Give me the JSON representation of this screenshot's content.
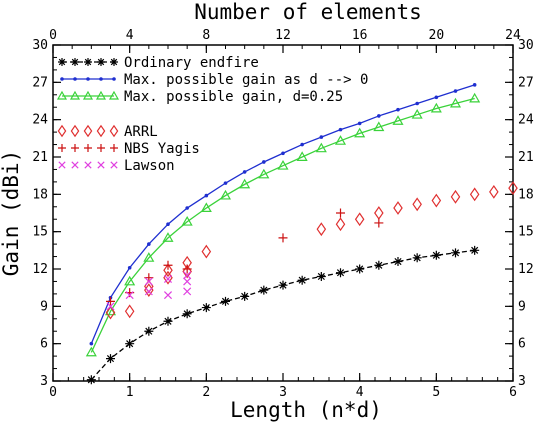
{
  "chart_data": {
    "type": "scatter",
    "xlabel": "Length (n*d)",
    "ylabel": "Gain (dBi)",
    "x2label": "Number of elements",
    "xlim": [
      0,
      6
    ],
    "ylim": [
      3,
      30
    ],
    "x2lim": [
      0,
      24
    ],
    "x_ticks": [
      "0",
      "1",
      "2",
      "3",
      "4",
      "5",
      "6"
    ],
    "y_ticks": [
      "3",
      "6",
      "9",
      "12",
      "15",
      "18",
      "21",
      "24",
      "27",
      "30"
    ],
    "x2_ticks": [
      "0",
      "4",
      "8",
      "12",
      "16",
      "20",
      "24"
    ],
    "legend_position": "top-left",
    "series": [
      {
        "name": "Ordinary endfire",
        "style": "line-markers",
        "marker": "star",
        "color": "#000000",
        "x": [
          0.5,
          0.75,
          1.0,
          1.25,
          1.5,
          1.75,
          2.0,
          2.25,
          2.5,
          2.75,
          3.0,
          3.25,
          3.5,
          3.75,
          4.0,
          4.25,
          4.5,
          4.75,
          5.0,
          5.25,
          5.5
        ],
        "y": [
          3.1,
          4.8,
          6.0,
          7.0,
          7.8,
          8.4,
          8.9,
          9.4,
          9.8,
          10.3,
          10.7,
          11.1,
          11.4,
          11.7,
          12.0,
          12.3,
          12.6,
          12.9,
          13.1,
          13.3,
          13.5
        ]
      },
      {
        "name": "Max. possible gain as d --> 0",
        "style": "line-markers",
        "marker": "dot",
        "color": "#1f2fd0",
        "x": [
          0.5,
          0.75,
          1.0,
          1.25,
          1.5,
          1.75,
          2.0,
          2.25,
          2.5,
          2.75,
          3.0,
          3.25,
          3.5,
          3.75,
          4.0,
          4.25,
          4.5,
          4.75,
          5.0,
          5.25,
          5.5
        ],
        "y": [
          6.0,
          9.7,
          12.1,
          14.0,
          15.6,
          16.9,
          17.9,
          18.9,
          19.8,
          20.6,
          21.3,
          22.0,
          22.6,
          23.2,
          23.7,
          24.3,
          24.8,
          25.3,
          25.8,
          26.3,
          26.8
        ]
      },
      {
        "name": "Max. possible gain, d=0.25",
        "style": "line-markers",
        "marker": "triangle",
        "color": "#3ad23a",
        "x": [
          0.5,
          0.75,
          1.0,
          1.25,
          1.5,
          1.75,
          2.0,
          2.25,
          2.5,
          2.75,
          3.0,
          3.25,
          3.5,
          3.75,
          4.0,
          4.25,
          4.5,
          4.75,
          5.0,
          5.25,
          5.5
        ],
        "y": [
          5.3,
          8.6,
          11.0,
          12.9,
          14.5,
          15.8,
          16.9,
          17.9,
          18.8,
          19.6,
          20.3,
          21.0,
          21.7,
          22.3,
          22.9,
          23.4,
          23.9,
          24.4,
          24.9,
          25.3,
          25.7
        ]
      },
      {
        "name": "ARRL",
        "style": "markers",
        "marker": "diamond",
        "color": "#e03030",
        "x": [
          0.75,
          1.0,
          1.25,
          1.25,
          1.5,
          1.5,
          1.75,
          1.75,
          2.0,
          3.5,
          3.75,
          4.0,
          4.25,
          4.5,
          4.75,
          5.0,
          5.25,
          5.5,
          5.75,
          6.0
        ],
        "y": [
          8.5,
          8.6,
          10.3,
          10.6,
          11.3,
          11.9,
          11.8,
          12.5,
          13.4,
          15.2,
          15.6,
          16.0,
          16.5,
          16.9,
          17.2,
          17.5,
          17.8,
          18.0,
          18.2,
          18.5
        ]
      },
      {
        "name": "NBS Yagis",
        "style": "markers",
        "marker": "plus",
        "color": "#cc1010",
        "x": [
          0.75,
          1.0,
          1.25,
          1.5,
          1.75,
          3.0,
          3.75,
          4.25
        ],
        "y": [
          9.4,
          10.1,
          11.3,
          12.3,
          12.0,
          14.5,
          16.5,
          15.7
        ]
      },
      {
        "name": "Lawson",
        "style": "markers",
        "marker": "x",
        "color": "#e040e0",
        "x": [
          0.75,
          1.0,
          1.25,
          1.25,
          1.5,
          1.5,
          1.75,
          1.75,
          1.75
        ],
        "y": [
          9.0,
          9.9,
          10.2,
          11.0,
          9.9,
          11.2,
          10.2,
          11.0,
          11.5
        ]
      }
    ]
  }
}
